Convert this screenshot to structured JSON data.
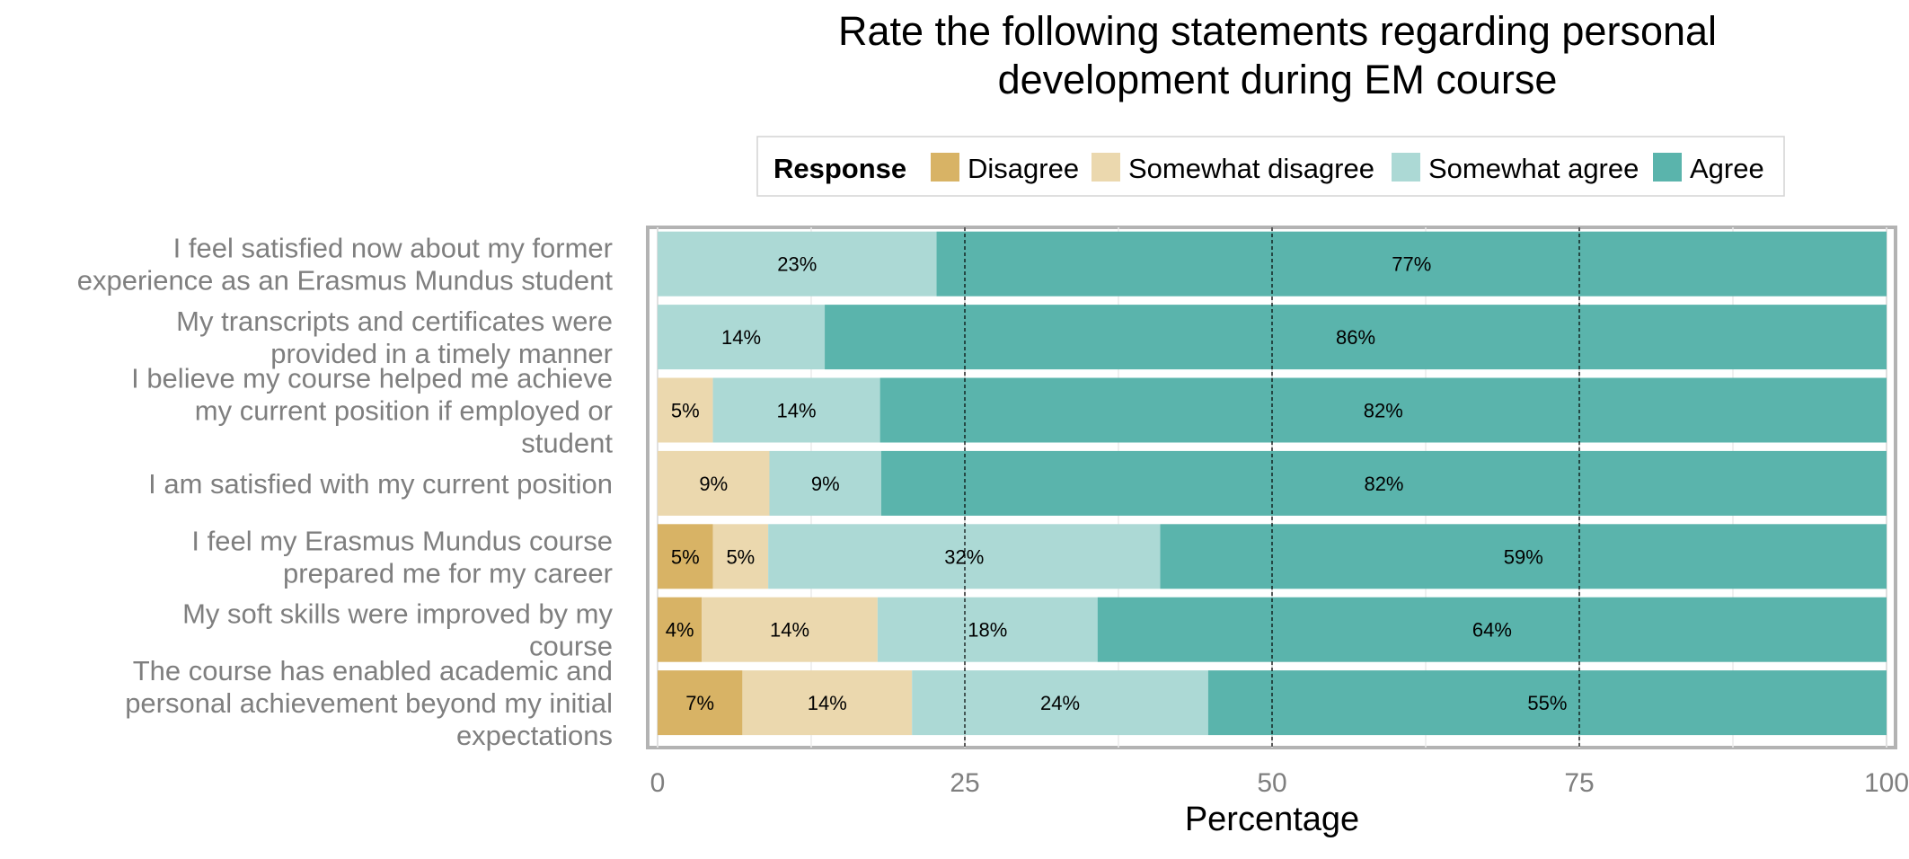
{
  "chart_data": {
    "type": "bar",
    "orientation": "horizontal",
    "stacked": true,
    "title": "Rate the following statements regarding personal development during EM course",
    "title_lines": [
      "Rate the following statements regarding personal",
      "development during EM course"
    ],
    "xlabel": "Percentage",
    "ylabel": "",
    "xlim": [
      0,
      100
    ],
    "xticks": [
      0,
      25,
      50,
      75,
      100
    ],
    "grid": true,
    "legend_title": "Response",
    "legend_position": "top",
    "series": [
      {
        "name": "Disagree",
        "color": "#d8b365",
        "values": [
          0,
          0,
          0,
          0,
          5,
          4,
          7
        ]
      },
      {
        "name": "Somewhat disagree",
        "color": "#ebd8ae",
        "values": [
          0,
          0,
          5,
          9,
          5,
          14,
          14
        ]
      },
      {
        "name": "Somewhat agree",
        "color": "#acd9d5",
        "values": [
          23,
          14,
          14,
          9,
          32,
          18,
          24
        ]
      },
      {
        "name": "Agree",
        "color": "#5ab4ac",
        "values": [
          77,
          86,
          82,
          82,
          59,
          64,
          55
        ]
      }
    ],
    "plot_values": [
      [
        0,
        0,
        22.7,
        77.3
      ],
      [
        0,
        0,
        13.6,
        86.4
      ],
      [
        0,
        4.5,
        13.6,
        81.9
      ],
      [
        0,
        9.1,
        9.1,
        81.8
      ],
      [
        4.5,
        4.5,
        31.9,
        59.1
      ],
      [
        3.6,
        14.3,
        17.9,
        64.2
      ],
      [
        6.9,
        13.8,
        24.1,
        55.2
      ]
    ],
    "categories": [
      [
        "I feel satisfied now about my former",
        "experience as an Erasmus Mundus student"
      ],
      [
        "My transcripts and certificates were",
        "provided in a timely manner"
      ],
      [
        "I believe my course helped me achieve",
        "my current position if employed or",
        "student"
      ],
      [
        "I am satisfied with my current position"
      ],
      [
        "I feel my Erasmus Mundus course",
        "prepared me for my career"
      ],
      [
        "My soft skills were improved by my",
        "course"
      ],
      [
        "The course has enabled academic and",
        "personal achievement beyond my initial",
        "expectations"
      ]
    ]
  }
}
